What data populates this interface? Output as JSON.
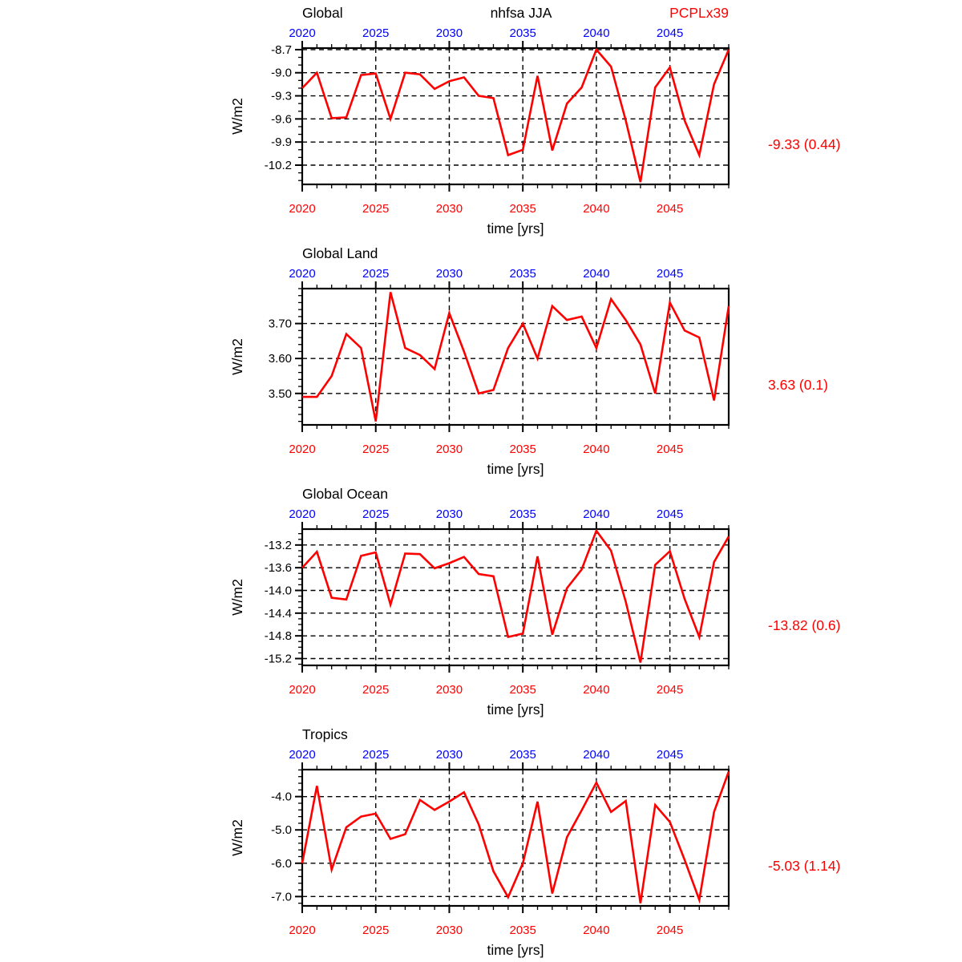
{
  "header": {
    "center_title": "nhfsa JJA",
    "right_title": "PCPLx39"
  },
  "colors": {
    "line": "#ff0000",
    "top_axis_label": "#0000ff",
    "bottom_axis_label": "#ff0000",
    "axis_text": "#000000",
    "stat_text": "#ff0000",
    "grid": "#000000"
  },
  "x_axis": {
    "title": "time [yrs]",
    "start": 2020,
    "end": 2049,
    "major_ticks": [
      2020,
      2025,
      2030,
      2035,
      2040,
      2045
    ],
    "grid_years": [
      2025,
      2030,
      2035,
      2040,
      2045
    ]
  },
  "chart_data": [
    {
      "type": "line",
      "title": "Global",
      "ylabel": "W/m2",
      "stat_label": "-9.33 (0.44)",
      "legend_position": "none",
      "grid": true,
      "ylim": [
        -10.45,
        -8.68
      ],
      "yticks": [
        -8.7,
        -9.0,
        -9.3,
        -9.6,
        -9.9,
        -10.2
      ],
      "ytick_labels": [
        "-8.7",
        "-9.0",
        "-9.3",
        "-9.6",
        "-9.9",
        "-10.2"
      ],
      "minor_step": 0.1,
      "x": [
        2020,
        2021,
        2022,
        2023,
        2024,
        2025,
        2026,
        2027,
        2028,
        2029,
        2030,
        2031,
        2032,
        2033,
        2034,
        2035,
        2036,
        2037,
        2038,
        2039,
        2040,
        2041,
        2042,
        2043,
        2044,
        2045,
        2046,
        2047,
        2048,
        2049
      ],
      "values": [
        -9.2,
        -9.0,
        -9.59,
        -9.58,
        -9.03,
        -9.01,
        -9.6,
        -9.0,
        -9.02,
        -9.21,
        -9.11,
        -9.06,
        -9.3,
        -9.33,
        -10.07,
        -10.0,
        -9.04,
        -10.01,
        -9.4,
        -9.19,
        -8.7,
        -8.92,
        -9.62,
        -10.42,
        -9.19,
        -8.93,
        -9.62,
        -10.07,
        -9.15,
        -8.7
      ]
    },
    {
      "type": "line",
      "title": "Global Land",
      "ylabel": "W/m2",
      "stat_label": "3.63 (0.1)",
      "legend_position": "none",
      "grid": true,
      "ylim": [
        3.41,
        3.8
      ],
      "yticks": [
        3.7,
        3.6,
        3.5
      ],
      "ytick_labels": [
        "3.70",
        "3.60",
        "3.50"
      ],
      "minor_step": 0.02,
      "x": [
        2020,
        2021,
        2022,
        2023,
        2024,
        2025,
        2026,
        2027,
        2028,
        2029,
        2030,
        2031,
        2032,
        2033,
        2034,
        2035,
        2036,
        2037,
        2038,
        2039,
        2040,
        2041,
        2042,
        2043,
        2044,
        2045,
        2046,
        2047,
        2048,
        2049
      ],
      "values": [
        3.49,
        3.49,
        3.55,
        3.67,
        3.63,
        3.42,
        3.79,
        3.63,
        3.61,
        3.57,
        3.73,
        3.62,
        3.5,
        3.51,
        3.63,
        3.7,
        3.6,
        3.75,
        3.71,
        3.72,
        3.63,
        3.77,
        3.71,
        3.64,
        3.5,
        3.76,
        3.68,
        3.66,
        3.48,
        3.75
      ]
    },
    {
      "type": "line",
      "title": "Global Ocean",
      "ylabel": "W/m2",
      "stat_label": "-13.82 (0.6)",
      "legend_position": "none",
      "grid": true,
      "ylim": [
        -15.32,
        -12.92
      ],
      "yticks": [
        -13.2,
        -13.6,
        -14.0,
        -14.4,
        -14.8,
        -15.2
      ],
      "ytick_labels": [
        "-13.2",
        "-13.6",
        "-14.0",
        "-14.4",
        "-14.8",
        "-15.2"
      ],
      "minor_step": 0.1,
      "x": [
        2020,
        2021,
        2022,
        2023,
        2024,
        2025,
        2026,
        2027,
        2028,
        2029,
        2030,
        2031,
        2032,
        2033,
        2034,
        2035,
        2036,
        2037,
        2038,
        2039,
        2040,
        2041,
        2042,
        2043,
        2044,
        2045,
        2046,
        2047,
        2048,
        2049
      ],
      "values": [
        -13.6,
        -13.32,
        -14.13,
        -14.16,
        -13.39,
        -13.33,
        -14.25,
        -13.35,
        -13.36,
        -13.61,
        -13.52,
        -13.41,
        -13.71,
        -13.75,
        -14.82,
        -14.76,
        -13.4,
        -14.78,
        -13.96,
        -13.63,
        -12.95,
        -13.3,
        -14.2,
        -15.27,
        -13.55,
        -13.31,
        -14.15,
        -14.82,
        -13.5,
        -13.05
      ]
    },
    {
      "type": "line",
      "title": "Tropics",
      "ylabel": "W/m2",
      "stat_label": "-5.03 (1.14)",
      "legend_position": "none",
      "grid": true,
      "ylim": [
        -7.28,
        -3.19
      ],
      "yticks": [
        -4.0,
        -5.0,
        -6.0,
        -7.0
      ],
      "ytick_labels": [
        "-4.0",
        "-5.0",
        "-6.0",
        "-7.0"
      ],
      "minor_step": 0.2,
      "x": [
        2020,
        2021,
        2022,
        2023,
        2024,
        2025,
        2026,
        2027,
        2028,
        2029,
        2030,
        2031,
        2032,
        2033,
        2034,
        2035,
        2036,
        2037,
        2038,
        2039,
        2040,
        2041,
        2042,
        2043,
        2044,
        2045,
        2046,
        2047,
        2048,
        2049
      ],
      "values": [
        -6.0,
        -3.68,
        -6.19,
        -4.92,
        -4.6,
        -4.51,
        -5.27,
        -5.13,
        -4.1,
        -4.4,
        -4.15,
        -3.87,
        -4.83,
        -6.24,
        -7.02,
        -6.0,
        -4.15,
        -6.91,
        -5.22,
        -4.41,
        -3.58,
        -4.46,
        -4.13,
        -7.2,
        -4.25,
        -4.76,
        -5.9,
        -7.1,
        -4.46,
        -3.25
      ]
    }
  ]
}
